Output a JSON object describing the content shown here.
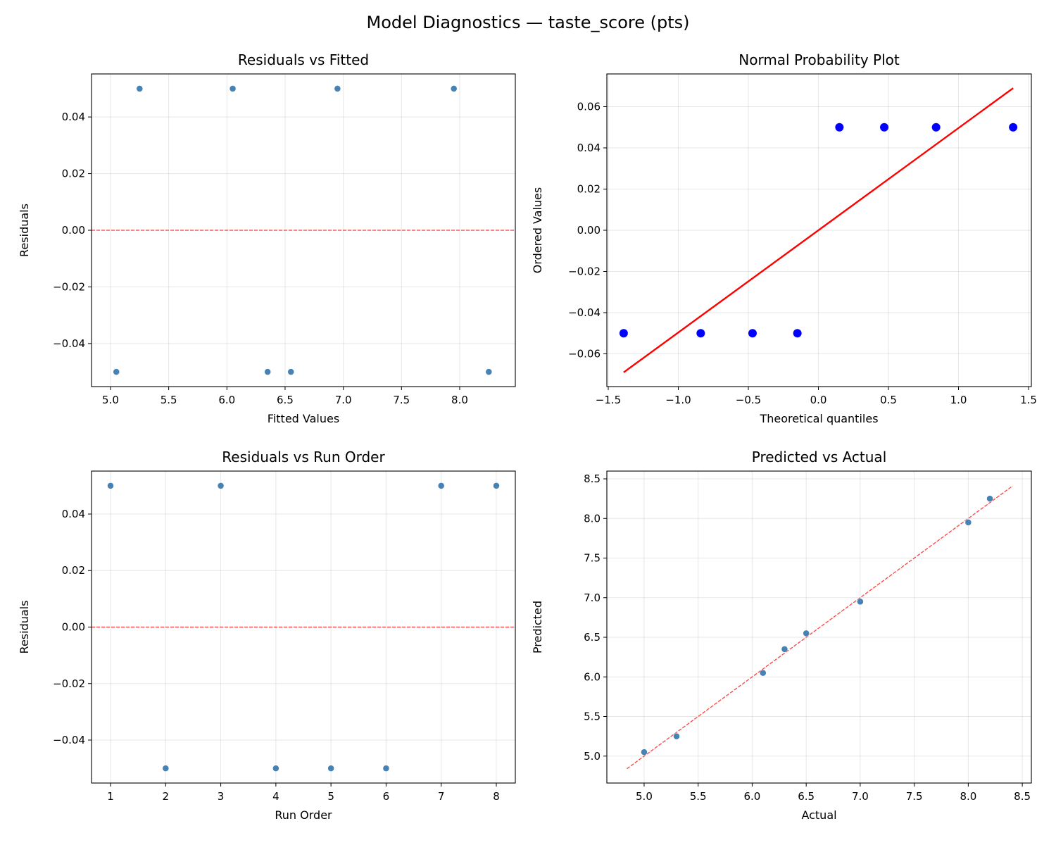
{
  "suptitle": "Model Diagnostics — taste_score (pts)",
  "chart_data": [
    {
      "type": "scatter",
      "title": "Residuals vs Fitted",
      "xlabel": "Fitted Values",
      "ylabel": "Residuals",
      "xlim": [
        4.837,
        8.478
      ],
      "ylim": [
        -0.0552,
        0.0552
      ],
      "xticks": [
        5.0,
        5.5,
        6.0,
        6.5,
        7.0,
        7.5,
        8.0
      ],
      "xtick_decimals": 1,
      "yticks": [
        -0.04,
        -0.02,
        0.0,
        0.02,
        0.04
      ],
      "ytick_decimals": 2,
      "grid": true,
      "series": [
        {
          "x": [
            5.05,
            5.25,
            6.05,
            6.35,
            6.55,
            6.95,
            7.95,
            8.25
          ],
          "y": [
            -0.05,
            0.05,
            0.05,
            -0.05,
            -0.05,
            0.05,
            0.05,
            -0.05
          ],
          "color": "#4682b4",
          "marker_size": "small"
        }
      ],
      "reference_lines": [
        {
          "kind": "horizontal",
          "y": 0.0,
          "color": "#ff0000",
          "style": "dashed"
        }
      ]
    },
    {
      "type": "scatter",
      "title": "Normal Probability Plot",
      "xlabel": "Theoretical quantiles",
      "ylabel": "Ordered Values",
      "xlim": [
        -1.51,
        1.52
      ],
      "ylim": [
        -0.0759,
        0.0759
      ],
      "xticks": [
        -1.5,
        -1.0,
        -0.5,
        0.0,
        0.5,
        1.0,
        1.5
      ],
      "xtick_decimals": 1,
      "yticks": [
        -0.06,
        -0.04,
        -0.02,
        0.0,
        0.02,
        0.04,
        0.06
      ],
      "ytick_decimals": 2,
      "grid": true,
      "series": [
        {
          "x": [
            -1.39,
            -0.84,
            -0.47,
            -0.15,
            0.15,
            0.47,
            0.84,
            1.39
          ],
          "y": [
            -0.05,
            -0.05,
            -0.05,
            -0.05,
            0.05,
            0.05,
            0.05,
            0.05
          ],
          "color": "#0000ff",
          "marker_size": "large"
        }
      ],
      "reference_lines": [
        {
          "kind": "segment",
          "x": [
            -1.39,
            1.39
          ],
          "y": [
            -0.069,
            0.069
          ],
          "color": "#ff0000",
          "style": "solid"
        }
      ]
    },
    {
      "type": "scatter",
      "title": "Residuals vs Run Order",
      "xlabel": "Run Order",
      "ylabel": "Residuals",
      "xlim": [
        0.655,
        8.345
      ],
      "ylim": [
        -0.0552,
        0.0552
      ],
      "xticks": [
        1,
        2,
        3,
        4,
        5,
        6,
        7,
        8
      ],
      "xtick_decimals": 0,
      "yticks": [
        -0.04,
        -0.02,
        0.0,
        0.02,
        0.04
      ],
      "ytick_decimals": 2,
      "grid": true,
      "series": [
        {
          "x": [
            1,
            2,
            3,
            4,
            5,
            6,
            7,
            8
          ],
          "y": [
            0.05,
            -0.05,
            0.05,
            -0.05,
            -0.05,
            -0.05,
            0.05,
            0.05
          ],
          "color": "#4682b4",
          "marker_size": "small"
        }
      ],
      "reference_lines": [
        {
          "kind": "horizontal",
          "y": 0.0,
          "color": "#ff0000",
          "style": "dashed"
        }
      ]
    },
    {
      "type": "scatter",
      "title": "Predicted vs Actual",
      "xlabel": "Actual",
      "ylabel": "Predicted",
      "xlim": [
        4.655,
        8.584
      ],
      "ylim": [
        4.66,
        8.598
      ],
      "xticks": [
        5.0,
        5.5,
        6.0,
        6.5,
        7.0,
        7.5,
        8.0,
        8.5
      ],
      "xtick_decimals": 1,
      "yticks": [
        5.0,
        5.5,
        6.0,
        6.5,
        7.0,
        7.5,
        8.0,
        8.5
      ],
      "ytick_decimals": 1,
      "grid": true,
      "series": [
        {
          "x": [
            5.0,
            5.3,
            6.1,
            6.3,
            6.5,
            7.0,
            8.0,
            8.2
          ],
          "y": [
            5.05,
            5.25,
            6.05,
            6.35,
            6.55,
            6.95,
            7.95,
            8.25
          ],
          "color": "#4682b4",
          "marker_size": "small"
        }
      ],
      "reference_lines": [
        {
          "kind": "segment",
          "x": [
            4.84,
            8.41
          ],
          "y": [
            4.84,
            8.41
          ],
          "color": "#ff0000",
          "style": "dashed"
        }
      ]
    }
  ]
}
